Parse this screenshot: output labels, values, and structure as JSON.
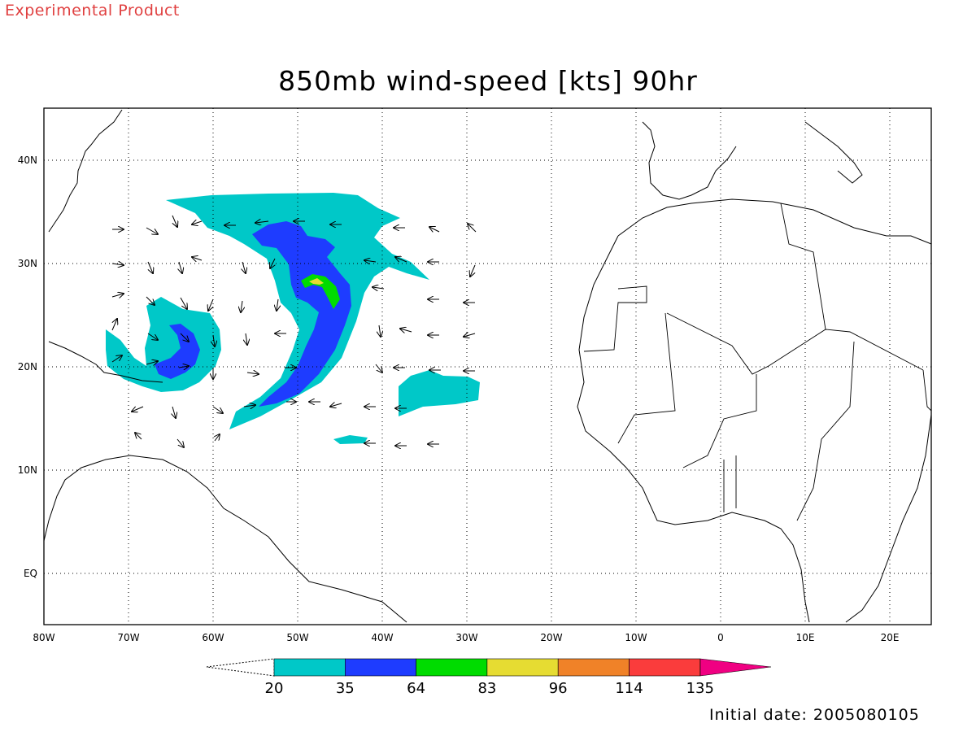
{
  "header": {
    "product_label": "Experimental Product",
    "title": "850mb wind-speed [kts] 90hr",
    "initial_date": "Initial date: 2005080105"
  },
  "map": {
    "projection": "lat-lon",
    "lon_range": [
      -80,
      25
    ],
    "lat_range": [
      -5,
      45
    ],
    "grid": "dotted",
    "lon_ticks": [
      "80W",
      "70W",
      "60W",
      "50W",
      "40W",
      "30W",
      "20W",
      "10W",
      "0",
      "10E",
      "20E"
    ],
    "lat_ticks": [
      "40N",
      "30N",
      "20N",
      "10N",
      "EQ"
    ]
  },
  "colorbar": {
    "labels": [
      "20",
      "35",
      "64",
      "83",
      "96",
      "114",
      "135"
    ],
    "colors": [
      "#00c8c8",
      "#1e3cff",
      "#00dc00",
      "#e6dc32",
      "#f08228",
      "#fa3c3c",
      "#f00082"
    ]
  },
  "shading_colors": {
    "kts_20_35": "#00c8c8",
    "kts_35_64": "#1e3cff",
    "kts_64_83": "#00dc00",
    "kts_83_96": "#e6dc32"
  }
}
